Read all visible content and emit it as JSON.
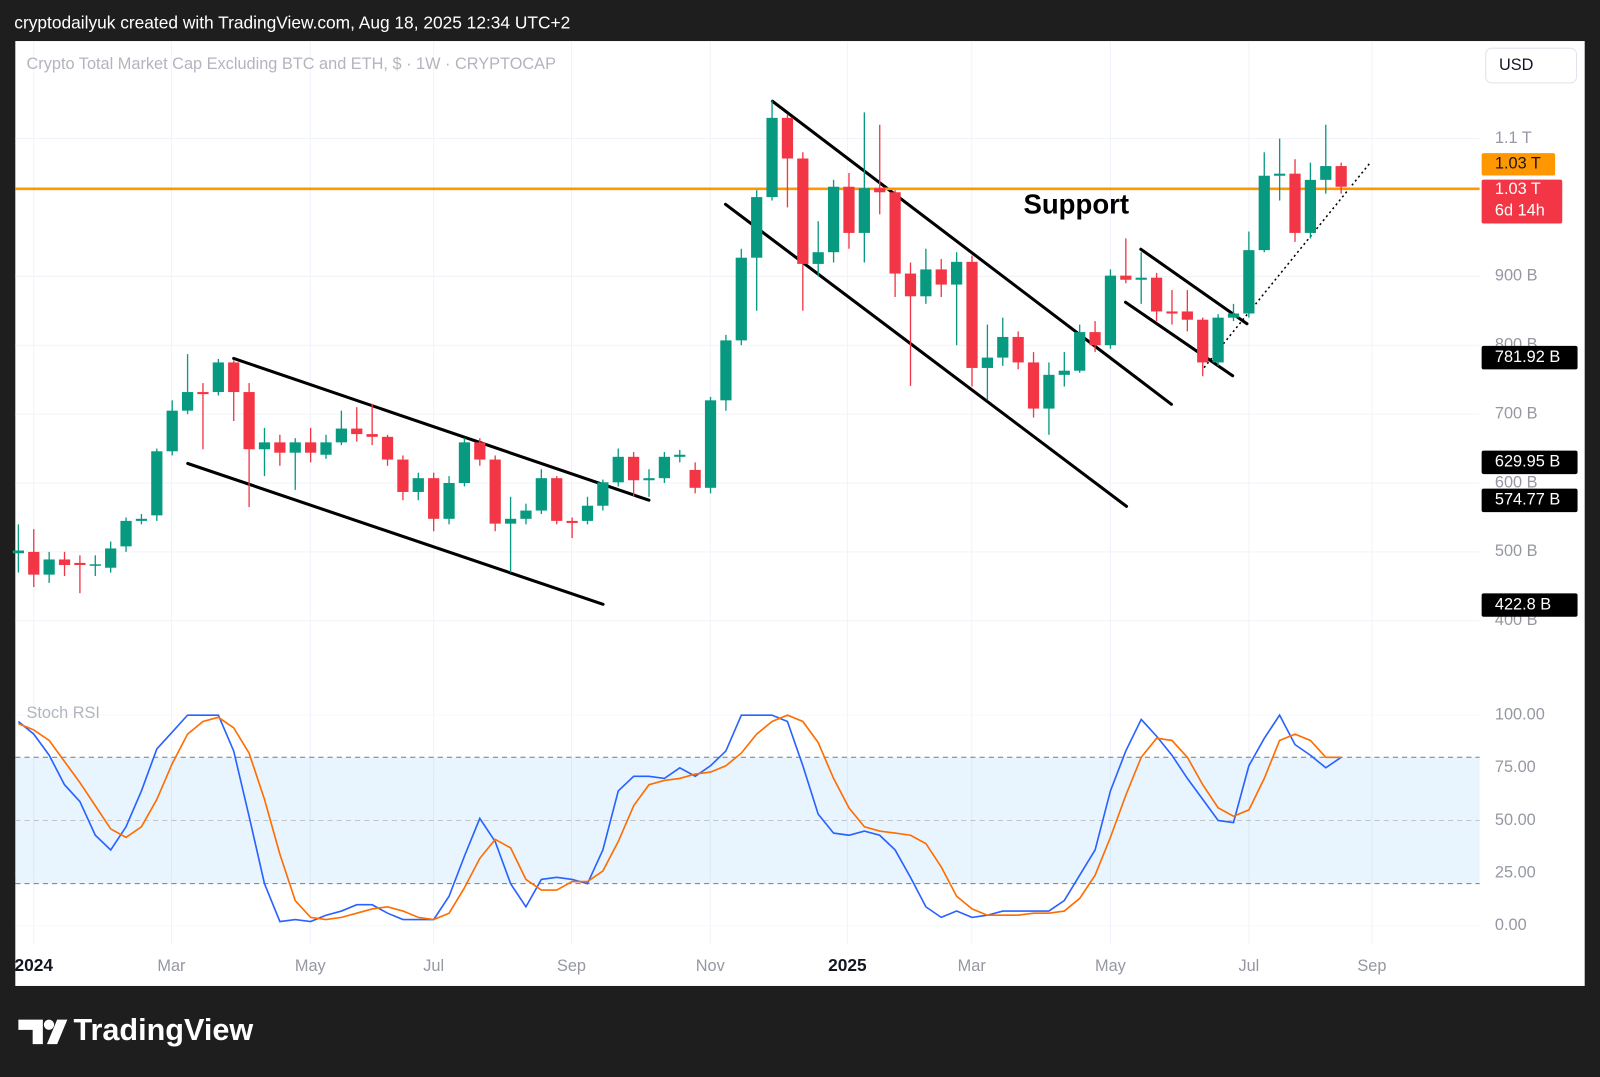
{
  "header": {
    "text": "cryptodailyuk created with TradingView.com, Aug 18, 2025 12:34 UTC+2"
  },
  "footer": {
    "logo": "TradingView"
  },
  "toolbar": {
    "currency": "USD"
  },
  "chart_data": [
    {
      "type": "candlestick",
      "title": "Crypto Total Market Cap Excluding BTC and ETH, $ · 1W · CRYPTOCAP",
      "open": [
        498,
        500,
        467,
        489,
        484,
        481,
        477,
        508,
        545,
        553,
        646,
        705,
        732,
        732,
        775,
        732,
        649,
        659,
        644,
        659,
        641,
        659,
        679,
        671,
        667,
        634,
        587,
        607,
        548,
        600,
        659,
        634,
        541,
        548,
        560,
        607,
        545,
        545,
        567,
        601,
        638,
        604,
        607,
        638,
        619,
        593,
        720,
        807,
        927,
        1015,
        1130,
        1071,
        918,
        935,
        1030,
        963,
        1028,
        1022,
        904,
        871,
        910,
        888,
        921,
        767,
        782,
        812,
        775,
        708,
        757,
        763,
        819,
        800,
        901,
        895,
        898,
        849,
        849,
        837,
        775,
        840,
        846,
        938,
        1046,
        1049,
        963,
        1040,
        1060
      ],
      "close": [
        502,
        467,
        489,
        481,
        481,
        482,
        505,
        545,
        548,
        646,
        705,
        732,
        729,
        775,
        732,
        649,
        659,
        644,
        659,
        644,
        659,
        679,
        671,
        667,
        634,
        587,
        607,
        548,
        600,
        659,
        634,
        541,
        548,
        560,
        607,
        545,
        542,
        567,
        601,
        638,
        604,
        607,
        638,
        641,
        593,
        720,
        807,
        927,
        1015,
        1130,
        1071,
        918,
        935,
        1030,
        963,
        1028,
        1022,
        904,
        871,
        910,
        888,
        921,
        767,
        782,
        812,
        775,
        708,
        757,
        763,
        819,
        800,
        901,
        895,
        898,
        849,
        846,
        837,
        775,
        840,
        846,
        938,
        1046,
        1049,
        963,
        1040,
        1060,
        1030
      ],
      "high": [
        540,
        533,
        500,
        500,
        495,
        495,
        515,
        550,
        555,
        650,
        720,
        787,
        745,
        780,
        778,
        745,
        680,
        670,
        665,
        680,
        670,
        705,
        710,
        715,
        670,
        640,
        615,
        615,
        610,
        665,
        665,
        640,
        580,
        570,
        620,
        610,
        550,
        580,
        605,
        650,
        645,
        620,
        645,
        648,
        630,
        725,
        815,
        940,
        1025,
        1155,
        1135,
        1080,
        980,
        1040,
        1050,
        1138,
        1120,
        1025,
        920,
        940,
        925,
        935,
        930,
        830,
        840,
        820,
        790,
        775,
        790,
        830,
        835,
        910,
        955,
        935,
        905,
        880,
        880,
        840,
        845,
        860,
        965,
        1080,
        1100,
        1070,
        1065,
        1120,
        1065
      ],
      "low": [
        470,
        449,
        455,
        465,
        440,
        465,
        470,
        500,
        540,
        545,
        640,
        700,
        649,
        727,
        690,
        565,
        610,
        625,
        590,
        630,
        635,
        655,
        660,
        655,
        625,
        575,
        575,
        530,
        540,
        595,
        625,
        530,
        470,
        540,
        555,
        540,
        520,
        540,
        560,
        595,
        580,
        580,
        600,
        630,
        585,
        585,
        705,
        800,
        850,
        1010,
        1000,
        850,
        900,
        920,
        940,
        920,
        990,
        870,
        741,
        860,
        870,
        800,
        740,
        720,
        770,
        765,
        695,
        670,
        740,
        760,
        790,
        795,
        890,
        860,
        835,
        830,
        820,
        755,
        770,
        835,
        840,
        935,
        1010,
        950,
        955,
        1020,
        1020
      ],
      "colors": {
        "up": "#089981",
        "down": "#f23645"
      },
      "xlim": [
        -0.2,
        95
      ],
      "xticks": [
        {
          "value": 1.0,
          "label": "2024"
        },
        {
          "value": 9.95,
          "label": "Mar"
        },
        {
          "value": 18.98,
          "label": "May"
        },
        {
          "value": 27.0,
          "label": "Jul"
        },
        {
          "value": 35.96,
          "label": "Sep"
        },
        {
          "value": 44.98,
          "label": "Nov"
        },
        {
          "value": 53.9,
          "label": "2025"
        },
        {
          "value": 61.98,
          "label": "Mar"
        },
        {
          "value": 71.0,
          "label": "May"
        },
        {
          "value": 80.0,
          "label": "Jul"
        },
        {
          "value": 88.0,
          "label": "Sep"
        }
      ],
      "ylim": [
        338,
        1240
      ],
      "yticks": [
        {
          "value": 400,
          "label": "400 B"
        },
        {
          "value": 500,
          "label": "500 B"
        },
        {
          "value": 600,
          "label": "600 B"
        },
        {
          "value": 700,
          "label": "700 B"
        },
        {
          "value": 800,
          "label": "800 B"
        },
        {
          "value": 900,
          "label": "900 B"
        },
        {
          "value": 1100,
          "label": "1.1 T"
        }
      ],
      "grid": true,
      "hlines": [
        {
          "value": 1027,
          "label": "1.03 T",
          "color": "#ff9800"
        }
      ],
      "last_price": {
        "label": "1.03 T",
        "countdown": "6d 14h"
      },
      "price_labels": [
        {
          "value": 781.92,
          "label": "781.92 B"
        },
        {
          "value": 629.95,
          "label": "629.95 B"
        },
        {
          "value": 574.77,
          "label": "574.77 B"
        },
        {
          "value": 422.8,
          "label": "422.8 B"
        }
      ],
      "annotations": [
        {
          "text": "Support"
        }
      ]
    },
    {
      "type": "line",
      "title": "Stoch RSI",
      "series": [
        {
          "color": "#2962ff",
          "values": [
            97,
            91,
            81,
            67,
            59,
            43,
            36,
            47,
            64,
            84,
            92,
            100,
            100,
            100,
            83,
            52,
            20,
            2,
            3,
            2,
            5,
            7,
            10,
            10,
            6,
            3,
            3,
            3,
            14,
            33,
            51,
            40,
            20,
            9,
            22,
            23,
            22,
            20,
            36,
            64,
            71,
            71,
            70,
            75,
            71,
            76,
            83,
            100,
            100,
            100,
            97,
            76,
            53,
            44,
            43,
            45,
            43,
            36,
            23,
            9,
            4,
            7,
            4,
            5,
            7,
            7,
            7,
            7,
            12,
            24,
            36,
            64,
            83,
            98,
            90,
            81,
            70,
            60,
            50,
            49,
            76,
            89,
            100,
            86,
            81,
            75,
            80
          ]
        },
        {
          "color": "#ff6d00",
          "values": [
            96,
            93,
            88,
            78,
            68,
            57,
            46,
            42,
            47,
            60,
            77,
            91,
            97,
            99,
            94,
            82,
            60,
            34,
            12,
            4,
            3,
            4,
            6,
            8,
            9,
            7,
            4,
            3,
            6,
            18,
            32,
            41,
            37,
            22,
            17,
            17,
            21,
            21,
            26,
            40,
            57,
            67,
            69,
            70,
            72,
            73,
            76,
            82,
            91,
            97,
            100,
            97,
            87,
            70,
            56,
            47,
            45,
            44,
            43,
            39,
            28,
            14,
            8,
            5,
            5,
            5,
            6,
            6,
            7,
            13,
            24,
            42,
            62,
            80,
            89,
            88,
            80,
            67,
            56,
            52,
            55,
            70,
            88,
            91,
            88,
            80,
            80
          ]
        }
      ],
      "xlim": [
        -0.2,
        95
      ],
      "ylim": [
        -8.7,
        110
      ],
      "yticks": [
        {
          "value": 0,
          "label": "0.00"
        },
        {
          "value": 25,
          "label": "25.00"
        },
        {
          "value": 50,
          "label": "50.00"
        },
        {
          "value": 75,
          "label": "75.00"
        },
        {
          "value": 100,
          "label": "100.00"
        }
      ],
      "band": {
        "lower": 20,
        "middle": 50,
        "upper": 80,
        "color": "#2196f3"
      }
    }
  ]
}
